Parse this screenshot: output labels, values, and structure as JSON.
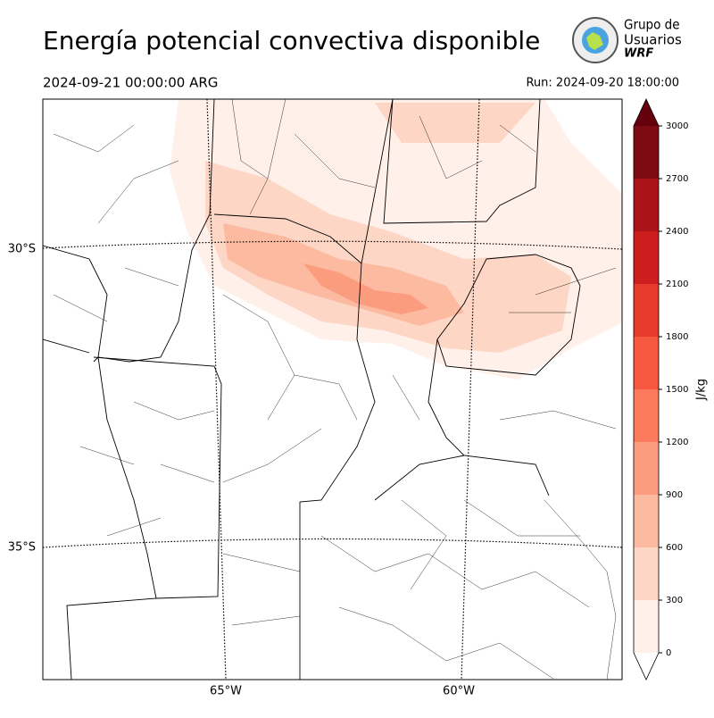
{
  "title": "Energía potencial convectiva disponible",
  "valid_time": "2024-09-21 00:00:00 ARG",
  "run_time": "Run: 2024-09-20 18:00:00",
  "logo": {
    "line1": "Grupo de",
    "line2": "Usuarios",
    "line3": "WRF"
  },
  "map": {
    "lat_labels": [
      "30°S",
      "35°S"
    ],
    "lon_labels": [
      "65°W",
      "60°W"
    ]
  },
  "colorbar": {
    "label": "J/kg",
    "ticks": [
      0,
      300,
      600,
      900,
      1200,
      1500,
      1800,
      2100,
      2400,
      2700,
      3000
    ],
    "colors": [
      "#fff0ea",
      "#fdd6c6",
      "#fcbba0",
      "#fc9c7e",
      "#fb7b5c",
      "#f6573f",
      "#e83a2c",
      "#cd1e1e",
      "#aa1319",
      "#7e0a12"
    ],
    "over_color": "#67000d"
  }
}
